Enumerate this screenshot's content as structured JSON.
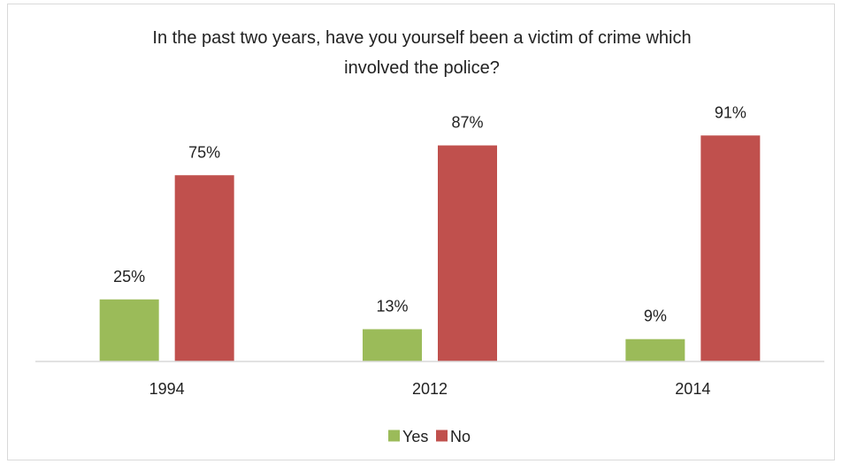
{
  "chart_data": {
    "type": "bar",
    "title": "In the past two years, have you yourself been a victim of crime which involved the police?",
    "title_lines": [
      "In the past two years, have you yourself been a victim of crime which",
      "involved the police?"
    ],
    "categories": [
      "1994",
      "2012",
      "2014"
    ],
    "series": [
      {
        "name": "Yes",
        "values": [
          25,
          13,
          9
        ],
        "labels": [
          "25%",
          "13%",
          "9%"
        ],
        "color": "#9bbb59"
      },
      {
        "name": "No",
        "values": [
          75,
          87,
          91
        ],
        "labels": [
          "75%",
          "87%",
          "91%"
        ],
        "color": "#c0504d"
      }
    ],
    "xlabel": "",
    "ylabel": "",
    "ylim": [
      0,
      100
    ],
    "grid": false,
    "legend_position": "bottom",
    "value_axis_visible": false
  }
}
